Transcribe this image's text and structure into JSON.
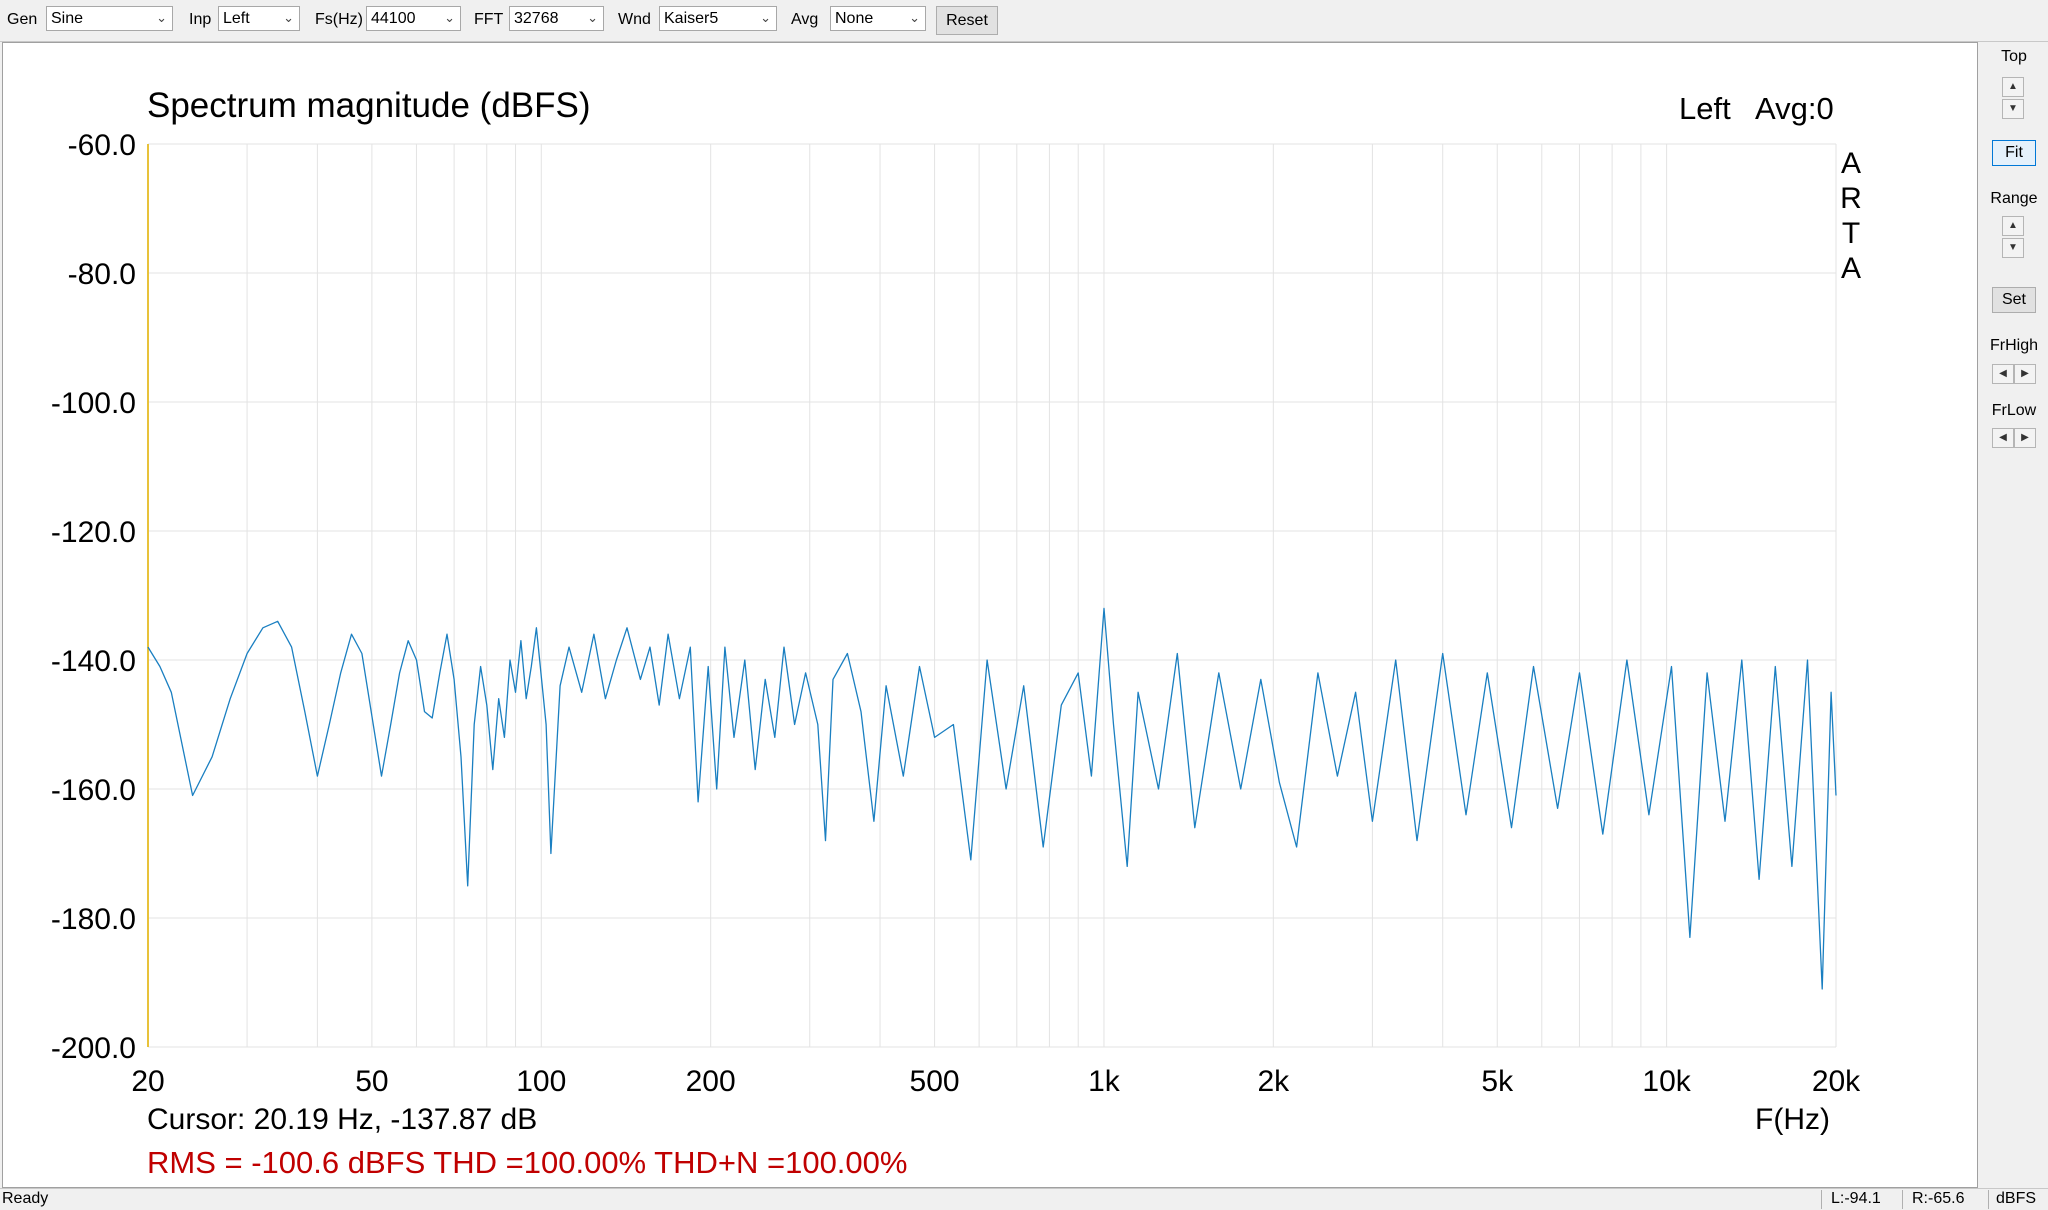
{
  "toolbar": {
    "gen_label": "Gen",
    "gen_value": "Sine",
    "inp_label": "Inp",
    "inp_value": "Left",
    "fs_label": "Fs(Hz)",
    "fs_value": "44100",
    "fft_label": "FFT",
    "fft_value": "32768",
    "wnd_label": "Wnd",
    "wnd_value": "Kaiser5",
    "avg_label": "Avg",
    "avg_value": "None",
    "reset_label": "Reset"
  },
  "right_panel": {
    "top_label": "Top",
    "fit_label": "Fit",
    "range_label": "Range",
    "set_label": "Set",
    "frhigh_label": "FrHigh",
    "frlow_label": "FrLow",
    "up_glyph": "▲",
    "down_glyph": "▼",
    "left_glyph": "◀",
    "right_glyph": "▶"
  },
  "status": {
    "ready": "Ready",
    "left_level": "L:-94.1",
    "right_level": "R:-65.6",
    "unit": "dBFS"
  },
  "colors": {
    "trace": "#1a7fc1",
    "grid": "#e3e3e3",
    "cursor_line": "#e8c23a",
    "rms_text": "#c00000"
  },
  "chart_data": {
    "type": "line",
    "title": "Spectrum magnitude (dBFS)",
    "channel_label": "Left",
    "avg_label": "Avg:0",
    "watermark": [
      "A",
      "R",
      "T",
      "A"
    ],
    "xlabel": "F(Hz)",
    "x_scale": "log",
    "xlim": [
      20,
      20000
    ],
    "ylim": [
      -200,
      -60
    ],
    "x_ticks": [
      20,
      50,
      100,
      200,
      500,
      1000,
      2000,
      5000,
      10000,
      20000
    ],
    "x_tick_labels": [
      "20",
      "50",
      "100",
      "200",
      "500",
      "1k",
      "2k",
      "5k",
      "10k",
      "20k"
    ],
    "y_ticks": [
      -60,
      -80,
      -100,
      -120,
      -140,
      -160,
      -180,
      -200
    ],
    "y_tick_labels": [
      "-60.0",
      "-80.0",
      "-100.0",
      "-120.0",
      "-140.0",
      "-160.0",
      "-180.0",
      "-200.0"
    ],
    "grid": true,
    "cursor_text": "Cursor: 20.19 Hz, -137.87 dB",
    "measure_text": "RMS = -100.6 dBFS THD =100.00% THD+N =100.00%",
    "series": [
      {
        "color": "#1a7fc1",
        "points": [
          [
            20,
            -138
          ],
          [
            21,
            -141
          ],
          [
            22,
            -145
          ],
          [
            24,
            -161
          ],
          [
            26,
            -155
          ],
          [
            28,
            -146
          ],
          [
            30,
            -139
          ],
          [
            32,
            -135
          ],
          [
            34,
            -134
          ],
          [
            36,
            -138
          ],
          [
            38,
            -148
          ],
          [
            40,
            -158
          ],
          [
            42,
            -150
          ],
          [
            44,
            -142
          ],
          [
            46,
            -136
          ],
          [
            48,
            -139
          ],
          [
            52,
            -158
          ],
          [
            54,
            -150
          ],
          [
            56,
            -142
          ],
          [
            58,
            -137
          ],
          [
            60,
            -140
          ],
          [
            62,
            -148
          ],
          [
            64,
            -149
          ],
          [
            66,
            -142
          ],
          [
            68,
            -136
          ],
          [
            70,
            -143
          ],
          [
            72,
            -155
          ],
          [
            74,
            -175
          ],
          [
            76,
            -150
          ],
          [
            78,
            -141
          ],
          [
            80,
            -147
          ],
          [
            82,
            -157
          ],
          [
            84,
            -146
          ],
          [
            86,
            -152
          ],
          [
            88,
            -140
          ],
          [
            90,
            -145
          ],
          [
            92,
            -137
          ],
          [
            94,
            -146
          ],
          [
            96,
            -141
          ],
          [
            98,
            -135
          ],
          [
            102,
            -150
          ],
          [
            104,
            -170
          ],
          [
            108,
            -144
          ],
          [
            112,
            -138
          ],
          [
            118,
            -145
          ],
          [
            124,
            -136
          ],
          [
            130,
            -146
          ],
          [
            136,
            -140
          ],
          [
            142,
            -135
          ],
          [
            150,
            -143
          ],
          [
            156,
            -138
          ],
          [
            162,
            -147
          ],
          [
            168,
            -136
          ],
          [
            176,
            -146
          ],
          [
            184,
            -138
          ],
          [
            190,
            -162
          ],
          [
            198,
            -141
          ],
          [
            205,
            -160
          ],
          [
            212,
            -138
          ],
          [
            220,
            -152
          ],
          [
            230,
            -140
          ],
          [
            240,
            -157
          ],
          [
            250,
            -143
          ],
          [
            260,
            -152
          ],
          [
            270,
            -138
          ],
          [
            282,
            -150
          ],
          [
            295,
            -142
          ],
          [
            310,
            -150
          ],
          [
            320,
            -168
          ],
          [
            330,
            -143
          ],
          [
            350,
            -139
          ],
          [
            370,
            -148
          ],
          [
            390,
            -165
          ],
          [
            410,
            -144
          ],
          [
            440,
            -158
          ],
          [
            470,
            -141
          ],
          [
            500,
            -152
          ],
          [
            540,
            -150
          ],
          [
            580,
            -171
          ],
          [
            620,
            -140
          ],
          [
            670,
            -160
          ],
          [
            720,
            -144
          ],
          [
            780,
            -169
          ],
          [
            840,
            -147
          ],
          [
            900,
            -142
          ],
          [
            950,
            -158
          ],
          [
            1000,
            -132
          ],
          [
            1040,
            -150
          ],
          [
            1100,
            -172
          ],
          [
            1150,
            -145
          ],
          [
            1250,
            -160
          ],
          [
            1350,
            -139
          ],
          [
            1450,
            -166
          ],
          [
            1600,
            -142
          ],
          [
            1750,
            -160
          ],
          [
            1900,
            -143
          ],
          [
            2050,
            -159
          ],
          [
            2200,
            -169
          ],
          [
            2400,
            -142
          ],
          [
            2600,
            -158
          ],
          [
            2800,
            -145
          ],
          [
            3000,
            -165
          ],
          [
            3300,
            -140
          ],
          [
            3600,
            -168
          ],
          [
            4000,
            -139
          ],
          [
            4400,
            -164
          ],
          [
            4800,
            -142
          ],
          [
            5300,
            -166
          ],
          [
            5800,
            -141
          ],
          [
            6400,
            -163
          ],
          [
            7000,
            -142
          ],
          [
            7700,
            -167
          ],
          [
            8500,
            -140
          ],
          [
            9300,
            -164
          ],
          [
            10200,
            -141
          ],
          [
            11000,
            -183
          ],
          [
            11800,
            -142
          ],
          [
            12700,
            -165
          ],
          [
            13600,
            -140
          ],
          [
            14600,
            -174
          ],
          [
            15600,
            -141
          ],
          [
            16700,
            -172
          ],
          [
            17800,
            -140
          ],
          [
            18900,
            -191
          ],
          [
            19600,
            -145
          ],
          [
            20000,
            -161
          ]
        ]
      }
    ]
  }
}
